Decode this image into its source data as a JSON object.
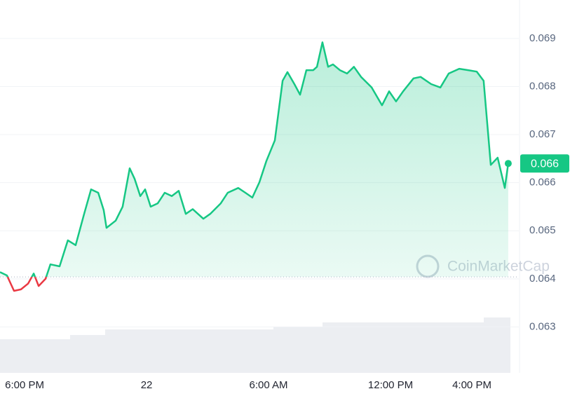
{
  "chart_data": {
    "type": "line",
    "x": [
      16.79,
      17.13,
      17.48,
      17.82,
      18.17,
      18.45,
      18.69,
      19.03,
      19.27,
      19.72,
      20.13,
      20.51,
      20.93,
      21.27,
      21.62,
      21.89,
      22.03,
      22.48,
      22.82,
      23.17,
      23.41,
      23.69,
      23.93,
      24.2,
      24.55,
      24.89,
      25.24,
      25.58,
      25.93,
      26.27,
      26.79,
      27.13,
      27.65,
      27.99,
      28.51,
      28.86,
      29.2,
      29.55,
      29.89,
      30.31,
      30.69,
      30.93,
      31.27,
      31.55,
      31.86,
      32.2,
      32.38,
      32.65,
      32.93,
      33.17,
      33.51,
      33.86,
      34.2,
      34.55,
      35.07,
      35.58,
      35.93,
      36.27,
      36.62,
      37.13,
      37.48,
      38.0,
      38.45,
      38.86,
      39.38,
      39.82,
      40.24,
      40.58,
      40.93,
      41.27,
      41.62,
      41.79
    ],
    "series": [
      {
        "color": "#16c784",
        "below_color": "#ea3943",
        "values": [
          0.06414,
          0.06407,
          0.06375,
          0.06378,
          0.0639,
          0.06411,
          0.06385,
          0.064,
          0.0643,
          0.06426,
          0.0648,
          0.0647,
          0.06535,
          0.06586,
          0.06579,
          0.06543,
          0.06506,
          0.06521,
          0.0655,
          0.0663,
          0.06608,
          0.06572,
          0.06586,
          0.0655,
          0.06557,
          0.06579,
          0.06572,
          0.06583,
          0.06535,
          0.06545,
          0.06525,
          0.06535,
          0.06557,
          0.06579,
          0.06589,
          0.06579,
          0.06569,
          0.06601,
          0.06645,
          0.06688,
          0.06812,
          0.0683,
          0.06805,
          0.06783,
          0.06834,
          0.06834,
          0.06841,
          0.06892,
          0.06841,
          0.06846,
          0.06834,
          0.06827,
          0.06841,
          0.0682,
          0.06798,
          0.06761,
          0.0679,
          0.06769,
          0.0679,
          0.06817,
          0.0682,
          0.06805,
          0.06798,
          0.06827,
          0.06837,
          0.06834,
          0.06831,
          0.06812,
          0.06637,
          0.06652,
          0.06589,
          0.0664
        ]
      }
    ],
    "baseline": 0.06404,
    "last_label": "0.066",
    "xlim": [
      16.79,
      42.31
    ],
    "xticks": [
      {
        "value": 18,
        "label": "6:00 PM"
      },
      {
        "value": 24,
        "label": "22"
      },
      {
        "value": 30,
        "label": "6:00 AM"
      },
      {
        "value": 36,
        "label": "12:00 PM"
      },
      {
        "value": 40,
        "label": "4:00 PM"
      }
    ],
    "ylim": [
      0.062,
      0.0698
    ],
    "yticks": [
      0.063,
      0.064,
      0.065,
      0.066,
      0.067,
      0.068,
      0.069
    ],
    "grid": true,
    "watermark": "CoinMarketCap"
  }
}
